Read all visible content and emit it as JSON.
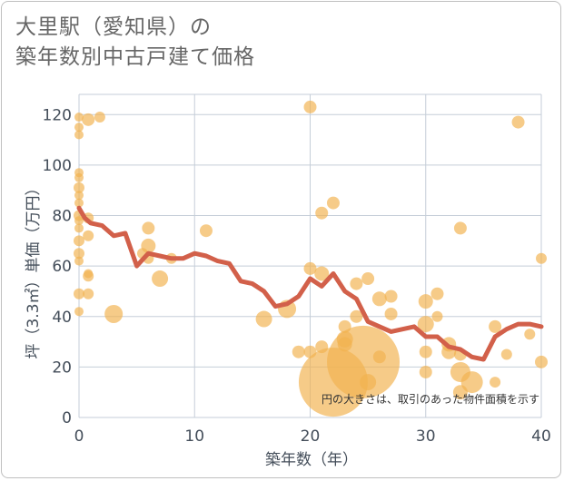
{
  "chart_data": {
    "type": "scatter",
    "title": "大里駅（愛知県）の\n築年数別中古戸建て価格",
    "xlabel": "築年数（年）",
    "ylabel": "坪（3.3㎡）単価（万円）",
    "note": "円の大きさは、取引のあった物件面積を示す",
    "xlim": [
      0,
      40
    ],
    "ylim": [
      0,
      128
    ],
    "xticks": [
      0,
      10,
      20,
      30,
      40
    ],
    "yticks": [
      0,
      20,
      40,
      60,
      80,
      100,
      120
    ],
    "colors": {
      "bubble": "#f2b34f",
      "line": "#d2604a",
      "grid": "#c5ced8",
      "text": "#444e5a"
    },
    "bubbles": [
      {
        "x": 0,
        "y": 119,
        "s": 5
      },
      {
        "x": 0,
        "y": 115,
        "s": 5
      },
      {
        "x": 0,
        "y": 112,
        "s": 5
      },
      {
        "x": 0.8,
        "y": 118,
        "s": 7
      },
      {
        "x": 1.8,
        "y": 119,
        "s": 6
      },
      {
        "x": 0,
        "y": 97,
        "s": 5
      },
      {
        "x": 0,
        "y": 95,
        "s": 5
      },
      {
        "x": 0,
        "y": 91,
        "s": 6
      },
      {
        "x": 0,
        "y": 88,
        "s": 5
      },
      {
        "x": 0,
        "y": 85,
        "s": 5
      },
      {
        "x": 0,
        "y": 80,
        "s": 6
      },
      {
        "x": 0,
        "y": 78,
        "s": 5
      },
      {
        "x": 0.8,
        "y": 79,
        "s": 6
      },
      {
        "x": 0,
        "y": 75,
        "s": 5
      },
      {
        "x": 0,
        "y": 70,
        "s": 6
      },
      {
        "x": 0.8,
        "y": 72,
        "s": 6
      },
      {
        "x": 0,
        "y": 65,
        "s": 6
      },
      {
        "x": 0,
        "y": 62,
        "s": 5
      },
      {
        "x": 0.8,
        "y": 57,
        "s": 5
      },
      {
        "x": 0.8,
        "y": 56,
        "s": 6
      },
      {
        "x": 0,
        "y": 49,
        "s": 6
      },
      {
        "x": 0.8,
        "y": 49,
        "s": 6
      },
      {
        "x": 0,
        "y": 42,
        "s": 5
      },
      {
        "x": 3,
        "y": 41,
        "s": 10
      },
      {
        "x": 5.5,
        "y": 65,
        "s": 6
      },
      {
        "x": 6,
        "y": 75,
        "s": 7
      },
      {
        "x": 6,
        "y": 68,
        "s": 8
      },
      {
        "x": 6,
        "y": 63,
        "s": 6
      },
      {
        "x": 7,
        "y": 55,
        "s": 9
      },
      {
        "x": 8,
        "y": 63,
        "s": 6
      },
      {
        "x": 11,
        "y": 74,
        "s": 7
      },
      {
        "x": 16,
        "y": 39,
        "s": 9
      },
      {
        "x": 18,
        "y": 43,
        "s": 10
      },
      {
        "x": 19,
        "y": 26,
        "s": 7
      },
      {
        "x": 20,
        "y": 123,
        "s": 7
      },
      {
        "x": 20,
        "y": 59,
        "s": 7
      },
      {
        "x": 20,
        "y": 26,
        "s": 7
      },
      {
        "x": 21,
        "y": 81,
        "s": 7
      },
      {
        "x": 21,
        "y": 57,
        "s": 8
      },
      {
        "x": 21,
        "y": 28,
        "s": 7
      },
      {
        "x": 22,
        "y": 85,
        "s": 7
      },
      {
        "x": 22,
        "y": 14,
        "s": 38
      },
      {
        "x": 23,
        "y": 36,
        "s": 7
      },
      {
        "x": 23,
        "y": 31,
        "s": 9
      },
      {
        "x": 23,
        "y": 29,
        "s": 8
      },
      {
        "x": 24,
        "y": 53,
        "s": 7
      },
      {
        "x": 24,
        "y": 40,
        "s": 7
      },
      {
        "x": 24.6,
        "y": 22,
        "s": 40
      },
      {
        "x": 25,
        "y": 55,
        "s": 7
      },
      {
        "x": 25,
        "y": 14,
        "s": 9
      },
      {
        "x": 26,
        "y": 47,
        "s": 8
      },
      {
        "x": 26,
        "y": 24,
        "s": 7
      },
      {
        "x": 27,
        "y": 48,
        "s": 7
      },
      {
        "x": 27,
        "y": 41,
        "s": 7
      },
      {
        "x": 30,
        "y": 46,
        "s": 8
      },
      {
        "x": 30,
        "y": 37,
        "s": 9
      },
      {
        "x": 30,
        "y": 26,
        "s": 7
      },
      {
        "x": 30,
        "y": 18,
        "s": 7
      },
      {
        "x": 31,
        "y": 49,
        "s": 7
      },
      {
        "x": 31,
        "y": 40,
        "s": 6
      },
      {
        "x": 32,
        "y": 29,
        "s": 8
      },
      {
        "x": 32,
        "y": 26,
        "s": 8
      },
      {
        "x": 33,
        "y": 75,
        "s": 7
      },
      {
        "x": 33,
        "y": 25,
        "s": 7
      },
      {
        "x": 33,
        "y": 18,
        "s": 11
      },
      {
        "x": 33,
        "y": 10,
        "s": 8
      },
      {
        "x": 34,
        "y": 14,
        "s": 12
      },
      {
        "x": 36,
        "y": 36,
        "s": 7
      },
      {
        "x": 36,
        "y": 14,
        "s": 6
      },
      {
        "x": 37,
        "y": 25,
        "s": 6
      },
      {
        "x": 38,
        "y": 117,
        "s": 7
      },
      {
        "x": 39,
        "y": 33,
        "s": 6
      },
      {
        "x": 40,
        "y": 63,
        "s": 6
      },
      {
        "x": 40,
        "y": 22,
        "s": 7
      }
    ],
    "trend": {
      "x": [
        0,
        0.5,
        1,
        2,
        3,
        4,
        5,
        6,
        7,
        8,
        9,
        10,
        11,
        12,
        13,
        14,
        15,
        16,
        17,
        18,
        19,
        20,
        21,
        22,
        23,
        24,
        25,
        26,
        27,
        28,
        29,
        30,
        31,
        32,
        33,
        34,
        35,
        36,
        37,
        38,
        39,
        40
      ],
      "y": [
        83,
        79,
        77,
        76,
        72,
        73,
        60,
        65,
        64,
        63,
        63,
        65,
        64,
        62,
        61,
        54,
        53,
        50,
        44,
        45,
        48,
        55,
        52,
        57,
        50,
        47,
        38,
        36,
        34,
        35,
        36,
        32,
        32,
        28,
        27,
        24,
        23,
        32,
        35,
        37,
        37,
        36
      ]
    }
  }
}
